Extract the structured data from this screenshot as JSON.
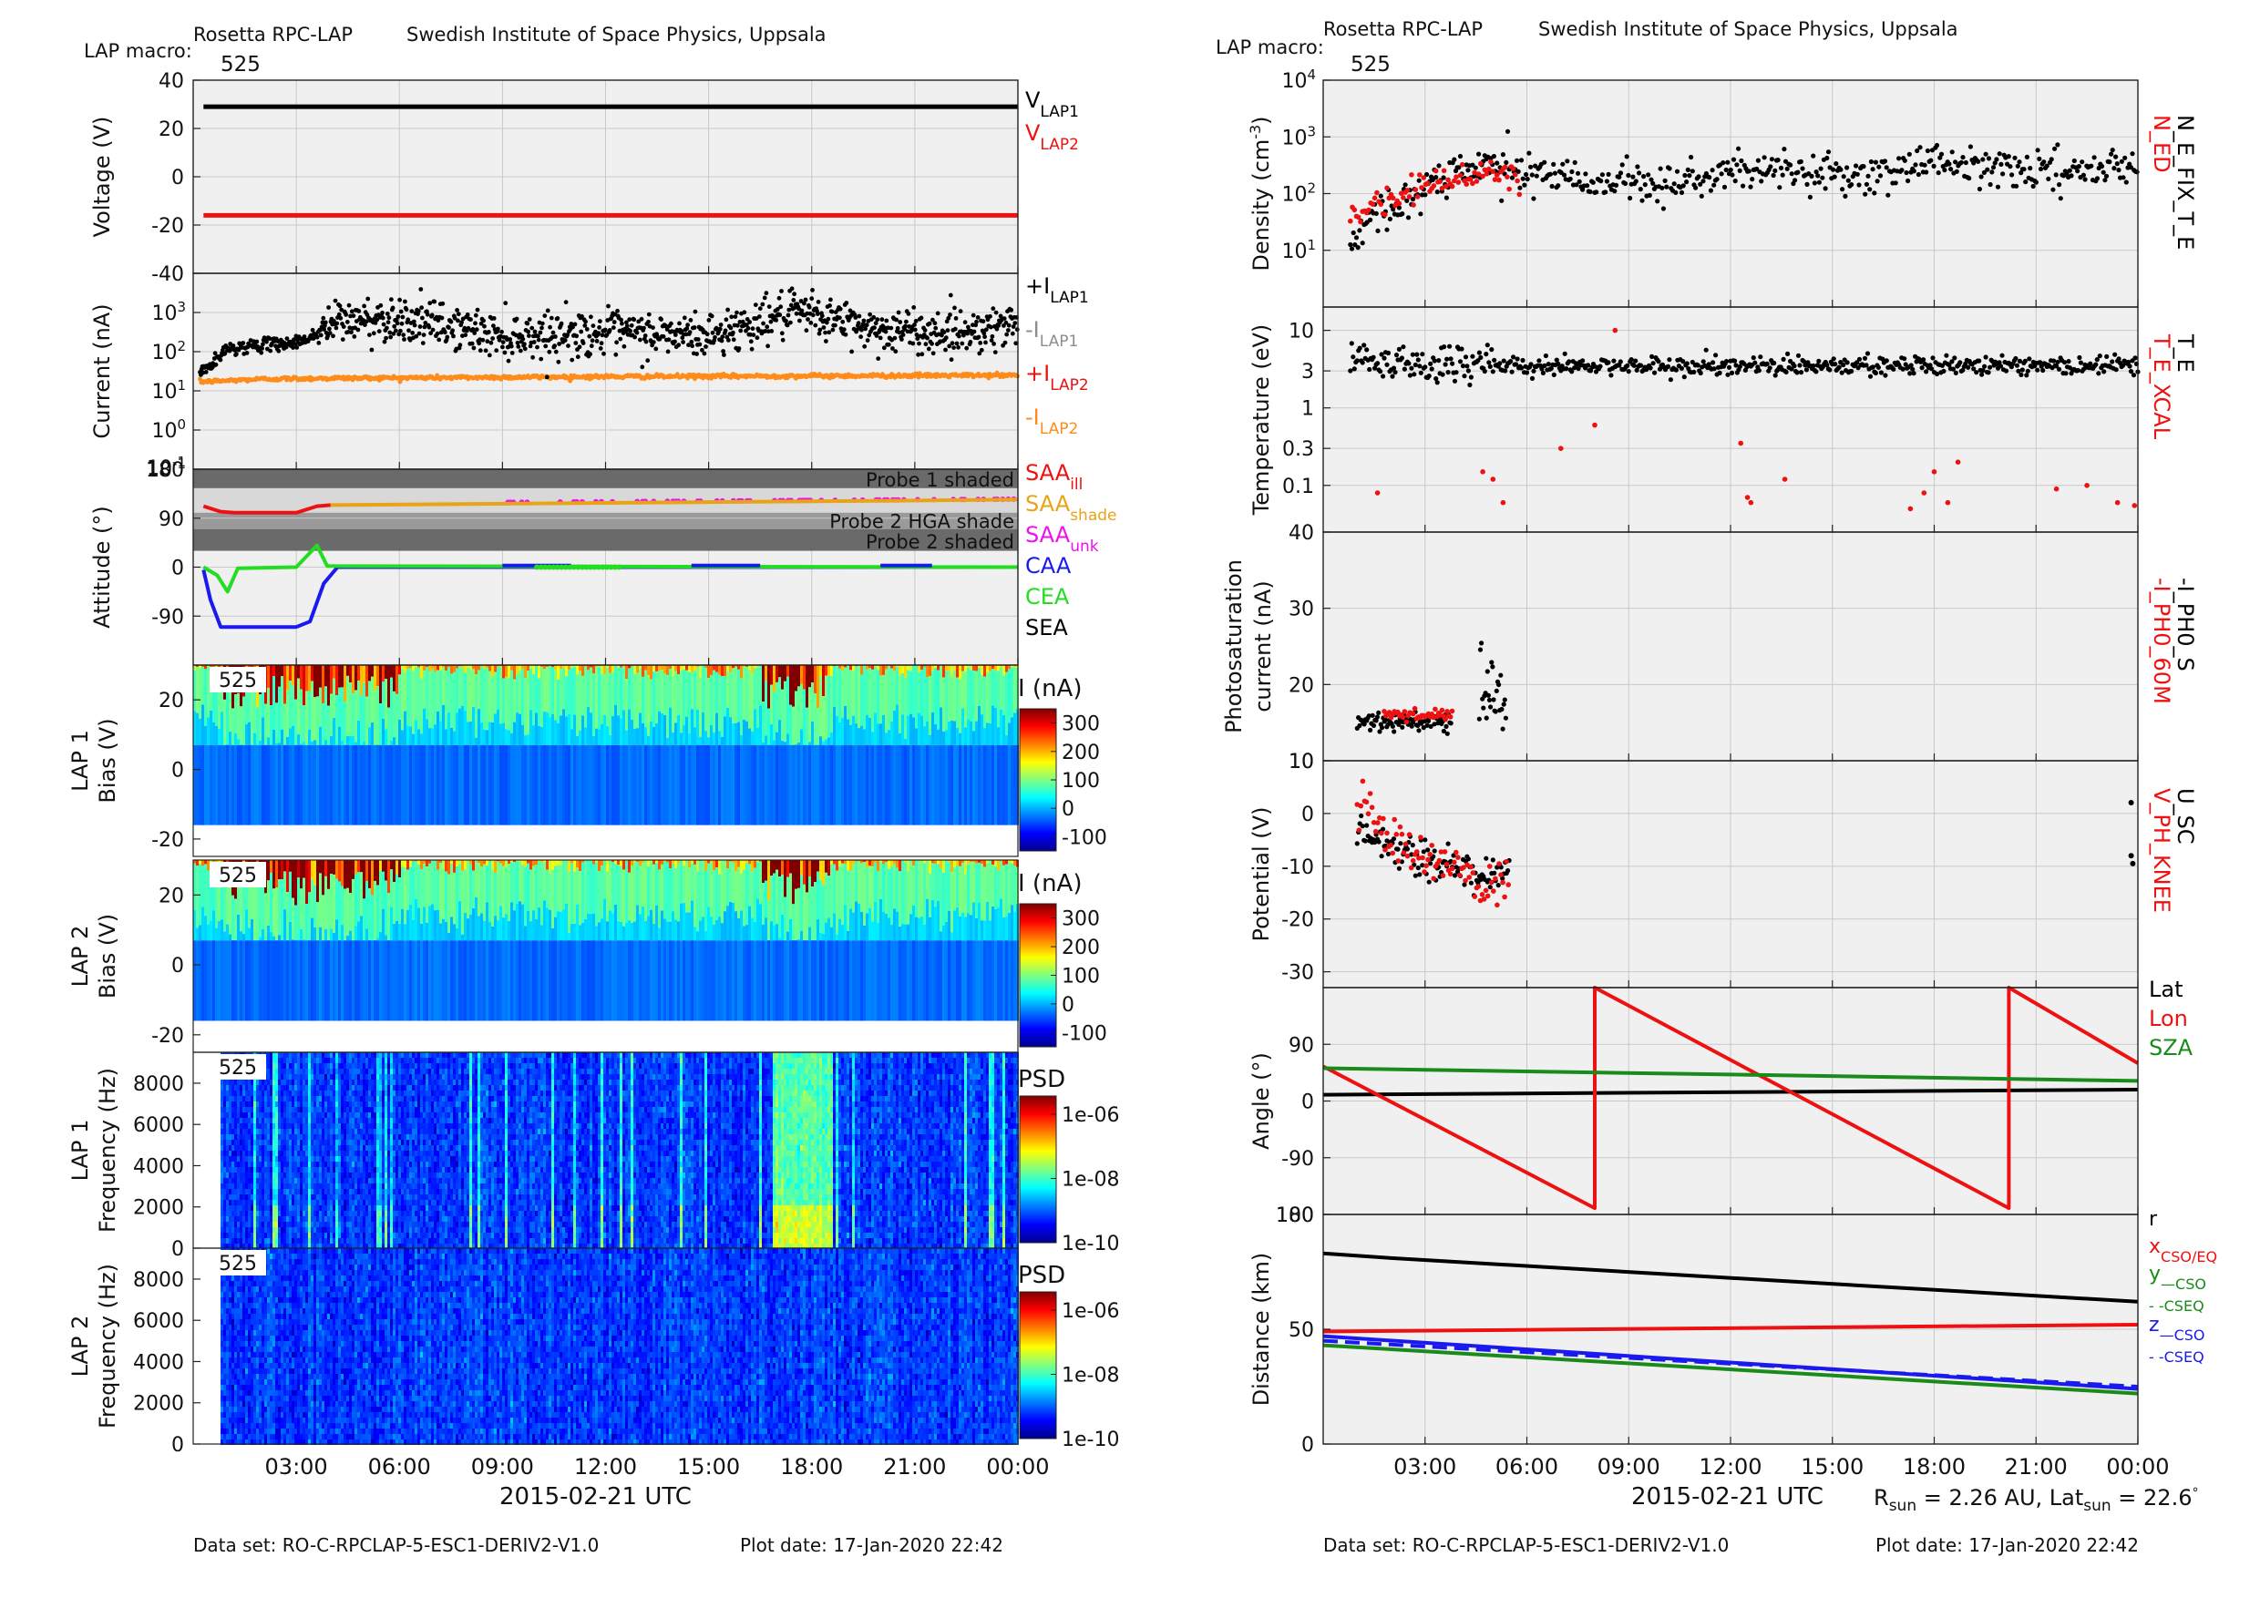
{
  "header": {
    "instrument": "Rosetta RPC-LAP",
    "institute": "Swedish Institute of Space Physics, Uppsala",
    "macro_label": "LAP macro:",
    "macro_value": "525"
  },
  "footer": {
    "dataset": "Data set: RO-C-RPCLAP-5-ESC1-DERIV2-V1.0",
    "plot_date": "Plot date: 17-Jan-2020 22:42"
  },
  "xaxis": {
    "label": "2015-02-21 UTC",
    "ticks": [
      "03:00",
      "06:00",
      "09:00",
      "12:00",
      "15:00",
      "18:00",
      "21:00",
      "00:00"
    ],
    "tick_hours": [
      3,
      6,
      9,
      12,
      15,
      18,
      21,
      24
    ],
    "range_hours": [
      0,
      24
    ]
  },
  "rsun": {
    "prefix": "R",
    "sub1": "sun",
    "mid": " = 2.26 AU, Lat",
    "sub2": "sun",
    "suffix": " = 22.6",
    "deg": "°"
  },
  "colors": {
    "black": "#000000",
    "red": "#ee1111",
    "orange": "#ff8c1a",
    "gray": "#8c8c8c",
    "magenta": "#ee11ee",
    "amber": "#e8a317",
    "blue": "#1a1aee",
    "green": "#22dd22",
    "darkgreen": "#1a8a1a",
    "panel_bg": "#f0f0f0",
    "shade_dark": "#6a6a6a",
    "shade_mid": "#9a9a9a"
  },
  "chart_data": [
    {
      "id": "voltage",
      "type": "line",
      "ylabel": "Voltage (V)",
      "ylim": [
        -40,
        40
      ],
      "yticks": [
        40,
        20,
        0,
        -20,
        -40
      ],
      "series": [
        {
          "name": "V_LAP1",
          "label_base": "V",
          "label_sub": "LAP1",
          "color": "#000000",
          "x": [
            0.3,
            24
          ],
          "y": [
            29,
            29
          ]
        },
        {
          "name": "V_LAP2",
          "label_base": "V",
          "label_sub": "LAP2",
          "color": "#ee1111",
          "x": [
            0.3,
            24
          ],
          "y": [
            -16,
            -16
          ]
        }
      ]
    },
    {
      "id": "current",
      "type": "scatter",
      "yscale": "log",
      "ylabel": "Current (nA)",
      "ylim": [
        0.1,
        10000
      ],
      "yticks": [
        {
          "v": 1000,
          "base": "10",
          "exp": "3"
        },
        {
          "v": 100,
          "base": "10",
          "exp": "2"
        },
        {
          "v": 10,
          "base": "10",
          "exp": "1"
        },
        {
          "v": 1,
          "base": "10",
          "exp": "0"
        },
        {
          "v": 0.1,
          "base": "10",
          "exp": "-1"
        }
      ],
      "black_trend_hours": [
        0.2,
        0.6,
        1.0,
        2.0,
        3.0,
        3.6,
        4.2,
        6.0,
        9.0,
        12.0,
        15.0,
        17.0,
        18.0,
        20.0,
        22.0,
        24.0
      ],
      "black_trend_values": [
        30,
        50,
        120,
        150,
        170,
        280,
        600,
        700,
        250,
        300,
        250,
        800,
        900,
        350,
        300,
        500
      ],
      "orange_trend_hours": [
        0.2,
        2.0,
        4.0,
        12.0,
        24.0
      ],
      "orange_trend_values": [
        17,
        20,
        21,
        23,
        25
      ],
      "legend": [
        {
          "prefix": "+I",
          "sub": "LAP1",
          "color": "#000000"
        },
        {
          "prefix": "-I",
          "sub": "LAP1",
          "color": "#8c8c8c"
        },
        {
          "prefix": "+I",
          "sub": "LAP2",
          "color": "#ee1111"
        },
        {
          "prefix": "-I",
          "sub": "LAP2",
          "color": "#ff8c1a"
        }
      ]
    },
    {
      "id": "attitude",
      "type": "line",
      "ylabel": "Attitude (°)",
      "ylim": [
        -180,
        180
      ],
      "yticks": [
        180,
        90,
        0,
        -90
      ],
      "shade_labels": [
        "Probe 1 shaded",
        "Probe 2 HGA shade",
        "Probe 2 shaded"
      ],
      "series": [
        {
          "name": "SAA_ill",
          "color": "#ee1111",
          "x": [
            0.3,
            0.8,
            1.2,
            3.0,
            3.6,
            4.0
          ],
          "y": [
            112,
            102,
            100,
            100,
            112,
            114
          ]
        },
        {
          "name": "SAA_shade",
          "color": "#e8a317",
          "x": [
            4.0,
            24
          ],
          "y": [
            114,
            124
          ]
        },
        {
          "name": "CAA",
          "color": "#1a1aee",
          "x": [
            0.3,
            0.5,
            0.8,
            1.2,
            3.0,
            3.4,
            3.8,
            4.2,
            24
          ],
          "y": [
            -5,
            -60,
            -110,
            -110,
            -110,
            -100,
            -30,
            0,
            0
          ]
        },
        {
          "name": "CEA",
          "color": "#22dd22",
          "x": [
            0.3,
            0.7,
            1.0,
            1.3,
            3.0,
            3.3,
            3.6,
            3.9,
            24
          ],
          "y": [
            0,
            -15,
            -45,
            -2,
            0,
            20,
            40,
            2,
            0
          ]
        }
      ],
      "legend": [
        {
          "base": "SAA",
          "sub": "ill",
          "color": "#ee1111"
        },
        {
          "base": "SAA",
          "sub": "shade",
          "color": "#e8a317"
        },
        {
          "base": "SAA",
          "sub": "unk",
          "color": "#ee11ee"
        },
        {
          "base": "CAA",
          "sub": "",
          "color": "#1a1aee"
        },
        {
          "base": "CEA",
          "sub": "",
          "color": "#22dd22"
        },
        {
          "base": "SEA",
          "sub": "",
          "color": "#000000"
        }
      ]
    },
    {
      "id": "lap1bias",
      "type": "heatmap",
      "ylabel1": "LAP 1",
      "ylabel2": "Bias (V)",
      "ylim": [
        -25,
        30
      ],
      "yticks": [
        20,
        0,
        -20
      ],
      "bias_range": [
        -16,
        30
      ],
      "colorbar": {
        "title": "I (nA)",
        "min": -150,
        "max": 350,
        "ticks": [
          300,
          200,
          100,
          0,
          -100
        ]
      },
      "tag": "525"
    },
    {
      "id": "lap2bias",
      "type": "heatmap",
      "ylabel1": "LAP 2",
      "ylabel2": "Bias (V)",
      "ylim": [
        -25,
        30
      ],
      "yticks": [
        20,
        0,
        -20
      ],
      "bias_range": [
        -16,
        30
      ],
      "colorbar": {
        "title": "I (nA)",
        "min": -150,
        "max": 350,
        "ticks": [
          300,
          200,
          100,
          0,
          -100
        ]
      },
      "tag": "525"
    },
    {
      "id": "lap1psd",
      "type": "heatmap",
      "ylabel1": "LAP 1",
      "ylabel2": "Frequency (Hz)",
      "ylim": [
        0,
        9500
      ],
      "yticks": [
        8000,
        6000,
        4000,
        2000,
        0
      ],
      "colorbar": {
        "title": "PSD",
        "log": true,
        "ticks": [
          "1e-06",
          "1e-08",
          "1e-10"
        ]
      },
      "tag": "525"
    },
    {
      "id": "lap2psd",
      "type": "heatmap",
      "ylabel1": "LAP 2",
      "ylabel2": "Frequency (Hz)",
      "ylim": [
        0,
        9500
      ],
      "yticks": [
        8000,
        6000,
        4000,
        2000,
        0
      ],
      "colorbar": {
        "title": "PSD",
        "log": true,
        "ticks": [
          "1e-06",
          "1e-08",
          "1e-10"
        ]
      },
      "tag": "525"
    },
    {
      "id": "density",
      "type": "scatter",
      "yscale": "log",
      "ylabel": "Density (cm",
      "ylabel_exp": "-3",
      "ylabel_end": ")",
      "ylim": [
        1,
        10000
      ],
      "yticks": [
        {
          "v": 10000,
          "base": "10",
          "exp": "4"
        },
        {
          "v": 1000,
          "base": "10",
          "exp": "3"
        },
        {
          "v": 100,
          "base": "10",
          "exp": "2"
        },
        {
          "v": 10,
          "base": "10",
          "exp": "1"
        }
      ],
      "black_trend_hours": [
        0.8,
        1.5,
        2.5,
        3.5,
        5.0,
        7.0,
        10.0,
        13.0,
        16.0,
        18.0,
        20.0,
        24.0
      ],
      "black_trend_values": [
        15,
        40,
        80,
        200,
        350,
        200,
        150,
        250,
        200,
        400,
        250,
        300
      ],
      "red_trend_hours": [
        0.8,
        1.5,
        2.5,
        3.5,
        4.5,
        5.5
      ],
      "red_trend_values": [
        35,
        60,
        120,
        150,
        200,
        220
      ],
      "rlabels": [
        {
          "text": "N_ED",
          "color": "#ee1111"
        },
        {
          "text": "N_E_FIX_T_E",
          "color": "#000000"
        }
      ]
    },
    {
      "id": "temperature",
      "type": "scatter",
      "yscale": "log",
      "ylabel": "Temperature (eV)",
      "ylim": [
        0.025,
        20
      ],
      "yticks": [
        {
          "v": 10,
          "label": "10"
        },
        {
          "v": 3,
          "label": "3"
        },
        {
          "v": 1,
          "label": "1"
        },
        {
          "v": 0.3,
          "label": "0.3"
        },
        {
          "v": 0.1,
          "label": "0.1"
        }
      ],
      "black_trend_hours": [
        1,
        5,
        24
      ],
      "black_trend_values": [
        4,
        3.5,
        3.5
      ],
      "red_outliers": {
        "hours": [
          1.6,
          4.7,
          5.0,
          5.3,
          7.0,
          8.0,
          8.6,
          12.3,
          12.5,
          12.6,
          13.6,
          17.3,
          17.7,
          18.0,
          18.4,
          18.7,
          21.6,
          22.5,
          23.4,
          23.9
        ],
        "values": [
          0.08,
          0.15,
          0.12,
          0.06,
          0.3,
          0.6,
          10,
          0.35,
          0.07,
          0.06,
          0.12,
          0.05,
          0.08,
          0.15,
          0.06,
          0.2,
          0.09,
          0.1,
          0.06,
          0.055
        ]
      },
      "rlabels": [
        {
          "text": "T_E_XCAL",
          "color": "#ee1111"
        },
        {
          "text": "T_E",
          "color": "#000000"
        }
      ]
    },
    {
      "id": "photosat",
      "type": "scatter",
      "ylabel1": "Photosaturation",
      "ylabel2": "current (nA)",
      "ylim": [
        10,
        40
      ],
      "yticks": [
        40,
        30,
        20,
        10
      ],
      "black_hours_range": [
        1,
        3.8
      ],
      "black_level": 15,
      "black_cluster_hours": [
        4.6,
        5.4
      ],
      "black_cluster_level": 19,
      "red_hours_range": [
        1.8,
        3.8
      ],
      "red_level": 16,
      "rlabels": [
        {
          "text": "-I_PH0_60M",
          "color": "#ee1111"
        },
        {
          "text": "-I_PH0_S",
          "color": "#000000"
        }
      ]
    },
    {
      "id": "potential",
      "type": "scatter",
      "ylabel": "Potential (V)",
      "ylim": [
        -33,
        10
      ],
      "yticks": [
        10,
        0,
        -10,
        -20,
        -30
      ],
      "black_hours": [
        1,
        2,
        3,
        3.8,
        4.6,
        5.4
      ],
      "black_values": [
        -3,
        -6,
        -9,
        -10,
        -12,
        -10
      ],
      "red_hours": [
        1,
        1.5,
        2,
        3,
        3.8,
        4.6,
        5.4
      ],
      "red_values": [
        2,
        0,
        -5,
        -8,
        -10,
        -15,
        -12
      ],
      "late_black": {
        "hours": [
          23.8
        ],
        "values": [
          -8
        ]
      },
      "rlabels": [
        {
          "text": "V_PH_KNEE",
          "color": "#ee1111"
        },
        {
          "text": "U_SC",
          "color": "#000000"
        }
      ]
    },
    {
      "id": "angle",
      "type": "line",
      "ylabel": "Angle (°)",
      "ylim": [
        -180,
        180
      ],
      "yticks": [
        90,
        0,
        -90
      ],
      "ytick_top_label": "180",
      "series": [
        {
          "name": "Lat",
          "color": "#000000",
          "x": [
            0,
            24
          ],
          "y": [
            10,
            18
          ]
        },
        {
          "name": "Lon",
          "color": "#ee1111",
          "x": [
            0,
            8.0,
            8.0,
            20.2,
            20.2,
            24
          ],
          "y": [
            55,
            -170,
            180,
            -170,
            180,
            60
          ]
        },
        {
          "name": "SZA",
          "color": "#1a8a1a",
          "x": [
            0,
            24
          ],
          "y": [
            52,
            32
          ]
        }
      ]
    },
    {
      "id": "distance",
      "type": "line",
      "ylabel": "Distance (km)",
      "ylim": [
        0,
        100
      ],
      "yticks": [
        100,
        50,
        0
      ],
      "series": [
        {
          "name": "r",
          "color": "#000000",
          "x": [
            0,
            2,
            24
          ],
          "y": [
            83,
            81,
            62
          ]
        },
        {
          "name": "x_CSO/EQ",
          "color": "#ee1111",
          "x": [
            0,
            24
          ],
          "y": [
            49,
            52
          ]
        },
        {
          "name": "z_CSO",
          "color": "#1a1aee",
          "x": [
            0,
            24
          ],
          "y": [
            47,
            24
          ]
        },
        {
          "name": "z_CSEQ",
          "color": "#1a1aee",
          "dash": true,
          "x": [
            0,
            24
          ],
          "y": [
            45,
            25
          ]
        },
        {
          "name": "y_CSO",
          "color": "#1a8a1a",
          "x": [
            0,
            24
          ],
          "y": [
            43,
            22
          ]
        }
      ],
      "legend": [
        {
          "base": "r",
          "sub": "",
          "color": "#000000"
        },
        {
          "base": "x",
          "sub": "CSO/EQ",
          "color": "#ee1111"
        },
        {
          "base": "y",
          "sub": "—CSO",
          "color": "#1a8a1a"
        },
        {
          "base": "",
          "sub": "- -CSEQ",
          "color": "#1a8a1a"
        },
        {
          "base": "z",
          "sub": "—CSO",
          "color": "#1a1aee"
        },
        {
          "base": "",
          "sub": "- -CSEQ",
          "color": "#1a1aee"
        }
      ]
    }
  ]
}
